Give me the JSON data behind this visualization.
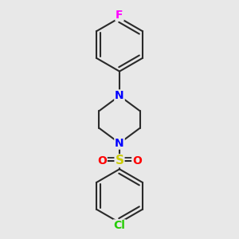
{
  "background_color": "#e8e8e8",
  "bond_color": "#2a2a2a",
  "bond_width": 1.5,
  "F_color": "#ff00ff",
  "F_label": "F",
  "Cl_color": "#22cc00",
  "Cl_label": "Cl",
  "N_color": "#0000ff",
  "N_label": "N",
  "S_color": "#cccc00",
  "S_label": "S",
  "O_color": "#ff0000",
  "O_label": "O",
  "fig_width": 3.0,
  "fig_height": 3.0,
  "dpi": 100,
  "xlim": [
    -1.1,
    1.1
  ],
  "ylim": [
    -1.55,
    1.55
  ]
}
